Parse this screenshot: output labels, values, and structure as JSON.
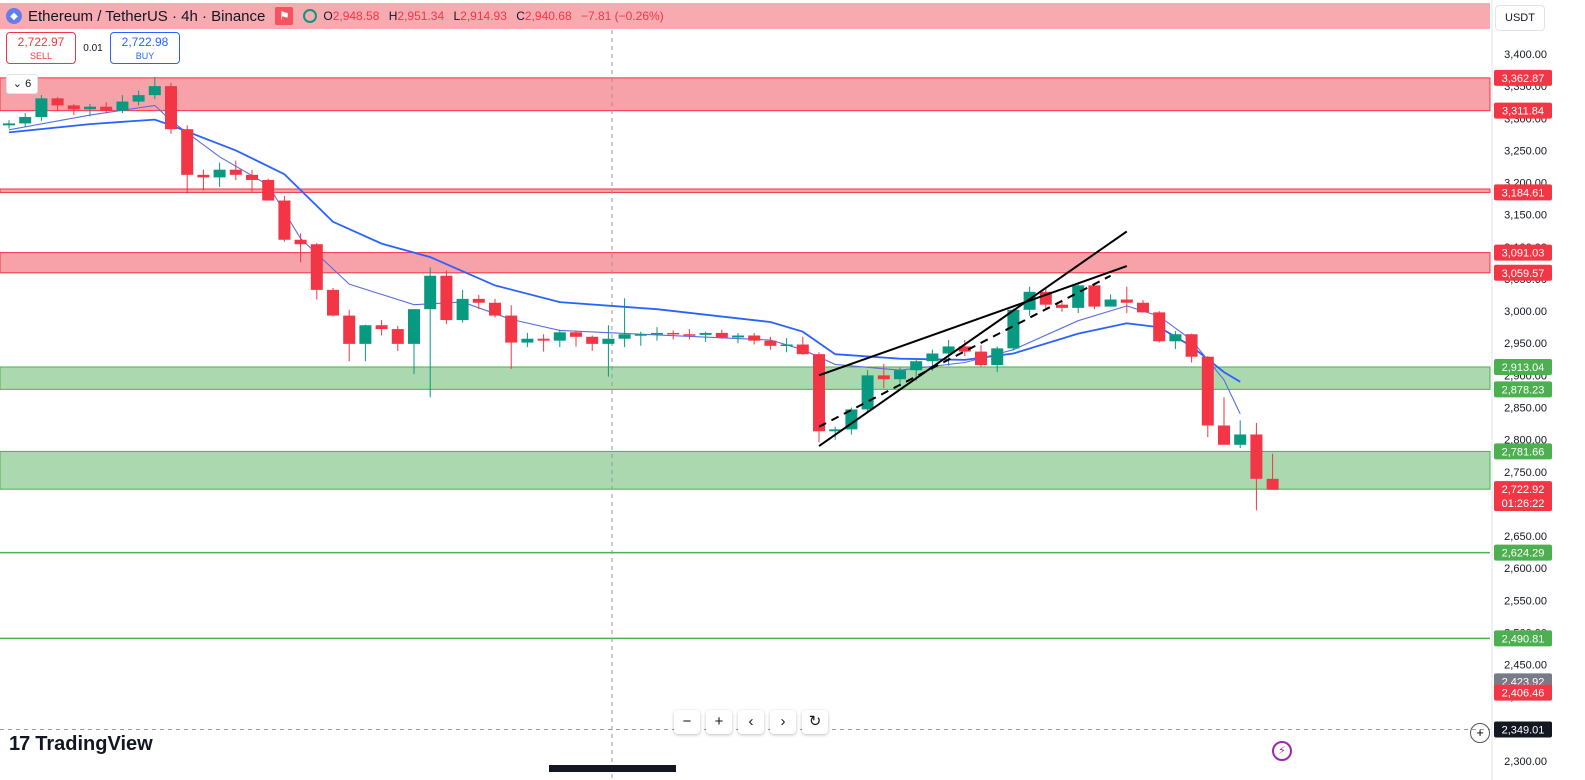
{
  "header": {
    "symbol": "Ethereum / TetherUS · 4h · Binance",
    "open_key": "O",
    "open": "2,948.58",
    "high_key": "H",
    "high": "2,951.34",
    "low_key": "L",
    "low": "2,914.93",
    "close_key": "C",
    "close": "2,940.68",
    "change": "−7.81 (−0.26%)"
  },
  "trade": {
    "sell_price": "2,722.97",
    "sell_label": "SELL",
    "spread": "0.01",
    "buy_price": "2,722.98",
    "buy_label": "BUY"
  },
  "collapse_label": "6",
  "currency": "USDT",
  "brand": "TradingView",
  "zoom_buttons": [
    "−",
    "+",
    "‹",
    "›",
    "↻"
  ],
  "colors": {
    "up": "#089981",
    "down": "#f23645",
    "ma_fast": "#5b6ee1",
    "ma_slow": "#2962ff",
    "red_zone": "#f7a1a8",
    "green_zone": "#acd8b0"
  },
  "chart_data": {
    "type": "candlestick",
    "ylim": [
      2300,
      3450
    ],
    "yticks": [
      "3,400.00",
      "3,350.00",
      "3,300.00",
      "3,250.00",
      "3,200.00",
      "3,150.00",
      "3,100.00",
      "3,050.00",
      "3,000.00",
      "2,950.00",
      "2,900.00",
      "2,850.00",
      "2,800.00",
      "2,750.00",
      "2,700.00",
      "2,650.00",
      "2,600.00",
      "2,550.00",
      "2,500.00",
      "2,450.00",
      "2,400.00",
      "2,350.00",
      "2,300.00"
    ],
    "candles": [
      [
        3289,
        3297,
        3284,
        3292
      ],
      [
        3292,
        3308,
        3286,
        3302
      ],
      [
        3302,
        3336,
        3296,
        3331
      ],
      [
        3331,
        3333,
        3312,
        3320
      ],
      [
        3320,
        3322,
        3305,
        3314
      ],
      [
        3314,
        3322,
        3303,
        3318
      ],
      [
        3318,
        3325,
        3308,
        3312
      ],
      [
        3312,
        3336,
        3308,
        3326
      ],
      [
        3326,
        3343,
        3320,
        3336
      ],
      [
        3336,
        3364,
        3330,
        3350
      ],
      [
        3350,
        3355,
        3276,
        3283
      ],
      [
        3283,
        3289,
        3183,
        3212
      ],
      [
        3212,
        3220,
        3188,
        3208
      ],
      [
        3208,
        3231,
        3193,
        3220
      ],
      [
        3220,
        3234,
        3204,
        3212
      ],
      [
        3212,
        3220,
        3186,
        3204
      ],
      [
        3204,
        3206,
        3175,
        3172
      ],
      [
        3172,
        3179,
        3108,
        3111
      ],
      [
        3111,
        3121,
        3076,
        3104
      ],
      [
        3104,
        3106,
        3018,
        3033
      ],
      [
        3033,
        3036,
        2992,
        2993
      ],
      [
        2993,
        3002,
        2922,
        2949
      ],
      [
        2949,
        2979,
        2922,
        2978
      ],
      [
        2978,
        2986,
        2962,
        2972
      ],
      [
        2972,
        2977,
        2938,
        2949
      ],
      [
        2949,
        3002,
        2902,
        3003
      ],
      [
        3003,
        3068,
        2866,
        3055
      ],
      [
        3055,
        3063,
        2980,
        2986
      ],
      [
        2986,
        3033,
        2982,
        3019
      ],
      [
        3019,
        3025,
        3003,
        3013
      ],
      [
        3013,
        3019,
        2990,
        2993
      ],
      [
        2993,
        3009,
        2910,
        2951
      ],
      [
        2951,
        2966,
        2944,
        2957
      ],
      [
        2957,
        2964,
        2937,
        2954
      ],
      [
        2954,
        2971,
        2944,
        2967
      ],
      [
        2967,
        2970,
        2945,
        2960
      ],
      [
        2960,
        2962,
        2938,
        2949
      ],
      [
        2949,
        2978,
        2898,
        2957
      ],
      [
        2957,
        3020,
        2944,
        2964
      ],
      [
        2964,
        2968,
        2946,
        2964
      ],
      [
        2964,
        2975,
        2954,
        2966
      ],
      [
        2966,
        2970,
        2956,
        2964
      ],
      [
        2964,
        2972,
        2956,
        2963
      ],
      [
        2963,
        2968,
        2952,
        2966
      ],
      [
        2966,
        2971,
        2957,
        2959
      ],
      [
        2959,
        2966,
        2950,
        2962
      ],
      [
        2962,
        2966,
        2948,
        2954
      ],
      [
        2954,
        2960,
        2940,
        2946
      ],
      [
        2946,
        2958,
        2936,
        2948
      ],
      [
        2948,
        2960,
        2932,
        2933
      ],
      [
        2933,
        2936,
        2796,
        2813
      ],
      [
        2813,
        2820,
        2800,
        2816
      ],
      [
        2816,
        2850,
        2808,
        2847
      ],
      [
        2847,
        2908,
        2842,
        2900
      ],
      [
        2900,
        2918,
        2880,
        2894
      ],
      [
        2894,
        2912,
        2883,
        2908
      ],
      [
        2908,
        2927,
        2892,
        2922
      ],
      [
        2922,
        2940,
        2907,
        2934
      ],
      [
        2934,
        2955,
        2915,
        2945
      ],
      [
        2945,
        2955,
        2930,
        2937
      ],
      [
        2937,
        2947,
        2914,
        2916
      ],
      [
        2916,
        2945,
        2905,
        2942
      ],
      [
        2942,
        3004,
        2939,
        3002
      ],
      [
        3002,
        3038,
        2993,
        3030
      ],
      [
        3030,
        3037,
        3002,
        3010
      ],
      [
        3010,
        3014,
        2999,
        3005
      ],
      [
        3005,
        3044,
        2997,
        3040
      ],
      [
        3040,
        3043,
        3003,
        3007
      ],
      [
        3007,
        3026,
        3007,
        3018
      ],
      [
        3018,
        3038,
        2997,
        3013
      ],
      [
        3013,
        3017,
        2998,
        2998
      ],
      [
        2998,
        3000,
        2951,
        2953
      ],
      [
        2953,
        2969,
        2941,
        2964
      ],
      [
        2964,
        2965,
        2920,
        2929
      ],
      [
        2929,
        2930,
        2804,
        2822
      ],
      [
        2822,
        2866,
        2794,
        2792
      ],
      [
        2792,
        2830,
        2787,
        2808
      ],
      [
        2808,
        2826,
        2690,
        2739
      ],
      [
        2739,
        2778,
        2732,
        2722
      ]
    ],
    "zones_red": [
      [
        3311.84,
        3362.87
      ],
      [
        3184.61,
        3190
      ],
      [
        3059.57,
        3091.03
      ]
    ],
    "zones_green": [
      [
        2878.23,
        2913.04
      ],
      [
        2722.92,
        2781.66
      ]
    ],
    "green_lines": [
      2624.29,
      2490.81
    ],
    "price_labels": [
      {
        "text": "3,362.87",
        "price": 3362.87,
        "color": "#f23645"
      },
      {
        "text": "3,311.84",
        "price": 3311.84,
        "color": "#f23645"
      },
      {
        "text": "3,184.61",
        "price": 3184.61,
        "color": "#f23645"
      },
      {
        "text": "3,091.03",
        "price": 3091.03,
        "color": "#f23645"
      },
      {
        "text": "3,059.57",
        "price": 3059.57,
        "color": "#f23645"
      },
      {
        "text": "2,913.04",
        "price": 2913.04,
        "color": "#4caf50"
      },
      {
        "text": "2,878.23",
        "price": 2878.23,
        "color": "#4caf50"
      },
      {
        "text": "2,781.66",
        "price": 2781.66,
        "color": "#4caf50"
      },
      {
        "text": "2,722.92",
        "price": 2722.92,
        "color": "#f23645",
        "sub": "01:26:22"
      },
      {
        "text": "2,624.29",
        "price": 2624.29,
        "color": "#4caf50"
      },
      {
        "text": "2,490.81",
        "price": 2490.81,
        "color": "#4caf50"
      },
      {
        "text": "2,423.92",
        "price": 2423.92,
        "color": "#787b86"
      },
      {
        "text": "2,406.46",
        "price": 2406.46,
        "color": "#f23645"
      },
      {
        "text": "2,349.01",
        "price": 2349.01,
        "color": "#131722"
      }
    ],
    "channel_lines": [
      {
        "from": [
          50,
          2790
        ],
        "to": [
          69,
          3124
        ],
        "style": "solid"
      },
      {
        "from": [
          50,
          2900
        ],
        "to": [
          69,
          3070
        ],
        "style": "solid"
      },
      {
        "from": [
          50,
          2820
        ],
        "to": [
          68,
          3055
        ],
        "style": "dashed"
      }
    ],
    "ma_fast_points": [
      [
        0,
        3282
      ],
      [
        5,
        3305
      ],
      [
        9,
        3320
      ],
      [
        10,
        3296
      ],
      [
        13,
        3240
      ],
      [
        16,
        3196
      ],
      [
        18,
        3113
      ],
      [
        21,
        3042
      ],
      [
        25,
        3010
      ],
      [
        28,
        3014
      ],
      [
        31,
        2987
      ],
      [
        34,
        2970
      ],
      [
        40,
        2963
      ],
      [
        47,
        2955
      ],
      [
        49,
        2940
      ],
      [
        51,
        2917
      ],
      [
        55,
        2908
      ],
      [
        59,
        2920
      ],
      [
        62,
        2940
      ],
      [
        66,
        2985
      ],
      [
        69,
        3008
      ],
      [
        71,
        2992
      ],
      [
        73,
        2955
      ],
      [
        75,
        2893
      ],
      [
        76,
        2840
      ]
    ],
    "ma_slow_points": [
      [
        0,
        3278
      ],
      [
        5,
        3291
      ],
      [
        9,
        3298
      ],
      [
        10,
        3289
      ],
      [
        14,
        3250
      ],
      [
        17,
        3213
      ],
      [
        20,
        3139
      ],
      [
        23,
        3105
      ],
      [
        26,
        3084
      ],
      [
        30,
        3040
      ],
      [
        34,
        3014
      ],
      [
        40,
        3003
      ],
      [
        47,
        2983
      ],
      [
        49,
        2968
      ],
      [
        51,
        2933
      ],
      [
        55,
        2926
      ],
      [
        59,
        2924
      ],
      [
        62,
        2934
      ],
      [
        66,
        2965
      ],
      [
        69,
        2981
      ],
      [
        71,
        2975
      ],
      [
        73,
        2945
      ],
      [
        75,
        2905
      ],
      [
        76,
        2890
      ]
    ]
  }
}
